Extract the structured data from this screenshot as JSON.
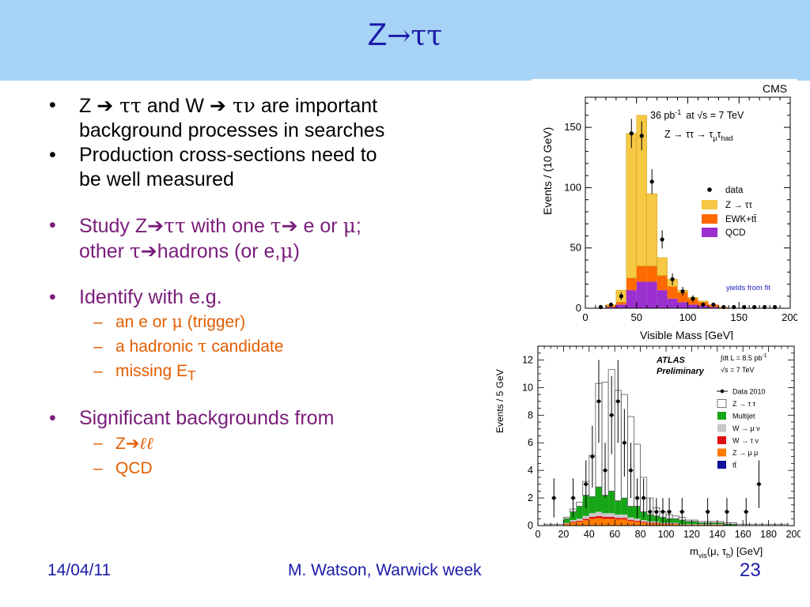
{
  "slide": {
    "title_prefix": "Z",
    "title_arrow": "→",
    "title_taus": "ττ",
    "bullets": [
      {
        "z": "Z ",
        "arrow": "➔",
        "tt": " ττ",
        "and_w": " and W ",
        "arrow2": "➔",
        "tn": " τν",
        "rest": " are important",
        "line2": "background processes in searches"
      },
      {
        "text": "Production cross-sections need to",
        "line2": "be well measured"
      },
      {
        "study": "Study Z",
        "arrow": "➔",
        "tt": "ττ",
        "with_one": "  with one ",
        "tau": "τ",
        "arrow2": "➔",
        "e_or": " e or ",
        "mu": "μ",
        "semi": ";",
        "other": "other ",
        "tau2": "τ",
        "arrow3": "➔",
        "hadrons": "hadrons (or e,",
        "mu2": "μ",
        "close": ")"
      },
      {
        "text": "Identify with e.g."
      },
      {
        "text": "Significant backgrounds from"
      }
    ],
    "identify_subs": [
      {
        "pre": "an e or ",
        "sym": "μ",
        "post": " (trigger)"
      },
      {
        "pre": "a hadronic ",
        "sym": "τ",
        "post": " candidate"
      },
      {
        "pre": "missing E",
        "sub": "T",
        "post": ""
      }
    ],
    "background_subs": [
      {
        "pre": "Z",
        "arrow": "➔",
        "ll": "ℓℓ"
      },
      {
        "pre": "QCD"
      }
    ],
    "bullet_char": "•",
    "dash_char": "–"
  },
  "footer": {
    "date": "14/04/11",
    "author": "M. Watson, Warwick week",
    "page": "23"
  },
  "colors": {
    "ztt_cms": "#f7c843",
    "ewk": "#ff6a00",
    "qcd": "#9b2fd0",
    "multijet": "#16a516",
    "wmunu": "#c8c8c8",
    "wtaunu": "#e01010",
    "zmumu": "#ff7a00",
    "ttbar": "#10109a"
  },
  "chart_data": [
    {
      "type": "bar",
      "label_experiment": "CMS",
      "lumi_text": "36 pb",
      "lumi_sup": "-1",
      "energy_text": "at √s = 7 TeV",
      "process_text": "Z → ττ → τ",
      "process_sub1": "μ",
      "process_sub2": "τ",
      "process_sub3": "had",
      "xlabel": "Visible Mass  [GeV]",
      "ylabel": "Events / (10 GeV)",
      "xlim": [
        0,
        200
      ],
      "ylim": [
        0,
        175
      ],
      "xticks": [
        "0",
        "50",
        "100",
        "150",
        "200"
      ],
      "yticks": [
        "0",
        "50",
        "100",
        "150"
      ],
      "note": "yields from fit",
      "legend": [
        "data",
        "Z → ττ",
        "EWK+tt̄",
        "QCD"
      ],
      "bin_edges": [
        20,
        30,
        40,
        50,
        60,
        70,
        80,
        90,
        100,
        110,
        120,
        130,
        140
      ],
      "qcd": [
        1,
        3,
        15,
        22,
        22,
        15,
        8,
        5,
        3,
        2,
        1,
        0
      ],
      "ewk": [
        1,
        2,
        10,
        13,
        13,
        12,
        10,
        8,
        5,
        3,
        2,
        1
      ],
      "ztt": [
        1,
        10,
        120,
        125,
        60,
        15,
        6,
        2,
        1,
        1,
        0,
        0
      ],
      "data_x": [
        15,
        25,
        35,
        45,
        55,
        65,
        75,
        85,
        95,
        105,
        115,
        125,
        135,
        145,
        155,
        165,
        175,
        185
      ],
      "data_y": [
        1,
        3,
        10,
        145,
        143,
        105,
        57,
        24,
        14,
        8,
        3,
        3,
        1,
        1,
        1,
        1,
        1,
        1
      ]
    },
    {
      "type": "bar",
      "label_experiment": "ATLAS",
      "label_status": "Preliminary",
      "lumi_text": "∫dt L = 8.5 pb",
      "lumi_sup": "-1",
      "energy_text": "√s = 7 TeV",
      "xlabel_pre": "m",
      "xlabel_sub": "vis",
      "xlabel_mid": "(μ, τ",
      "xlabel_sub2": "h",
      "xlabel_post": ")  [GeV]",
      "ylabel": "Events / 5 GeV",
      "xlim": [
        0,
        200
      ],
      "ylim": [
        0,
        13
      ],
      "xticks": [
        "0",
        "20",
        "40",
        "60",
        "80",
        "100",
        "120",
        "140",
        "160",
        "180",
        "200"
      ],
      "yticks": [
        "0",
        "2",
        "4",
        "6",
        "8",
        "10",
        "12"
      ],
      "legend": [
        "Data 2010",
        "Z → τ τ",
        "Multijet",
        "W → μ ν",
        "W → τ ν",
        "Z → μ μ",
        "tt̄"
      ],
      "bin_width": 5,
      "bin_start": 5,
      "ztt": [
        0.1,
        0.1,
        0.1,
        0.1,
        0.2,
        0.3,
        1.0,
        3.0,
        7.5,
        8.2,
        8.8,
        8.0,
        7.5,
        6.5,
        4.5,
        2.5,
        1.2,
        0.6,
        0.4,
        0.3,
        0.2,
        0.2,
        0.1,
        0.1,
        0.1,
        0.1,
        0.1,
        0.1,
        0.1,
        0.1,
        0.1,
        0.1,
        0.1,
        0.1,
        0.1,
        0.1,
        0.1,
        0.1
      ],
      "multijet": [
        0,
        0,
        0,
        0.3,
        0.6,
        0.9,
        1.5,
        1.2,
        1.8,
        1.3,
        1.6,
        1.0,
        1.2,
        0.8,
        0.9,
        0.6,
        0.5,
        0.4,
        0.4,
        0.3,
        0.3,
        0.3,
        0.2,
        0.2,
        0.1,
        0.1,
        0.1,
        0.1,
        0.1,
        0.1,
        0,
        0,
        0,
        0,
        0,
        0,
        0,
        0
      ],
      "background_rest": [
        0,
        0,
        0,
        0.2,
        0.4,
        0.5,
        0.7,
        0.9,
        1.0,
        0.9,
        0.9,
        0.8,
        0.8,
        0.6,
        0.5,
        0.4,
        0.3,
        0.3,
        0.2,
        0.2,
        0.2,
        0.1,
        0.1,
        0.1,
        0.1,
        0.1,
        0.1,
        0.1,
        0,
        0,
        0,
        0,
        0,
        0,
        0,
        0,
        0,
        0
      ],
      "data_x": [
        12.5,
        27.5,
        37.5,
        42.5,
        47.5,
        52.5,
        57.5,
        62.5,
        67.5,
        72.5,
        77.5,
        82.5,
        87.5,
        92.5,
        97.5,
        102.5,
        112.5,
        132.5,
        147.5,
        162.5,
        172.5
      ],
      "data_y": [
        2,
        2,
        3,
        5,
        9,
        4,
        8,
        9,
        6,
        4,
        2,
        2,
        1,
        1,
        1,
        1,
        1,
        1,
        1,
        1,
        3
      ]
    }
  ]
}
